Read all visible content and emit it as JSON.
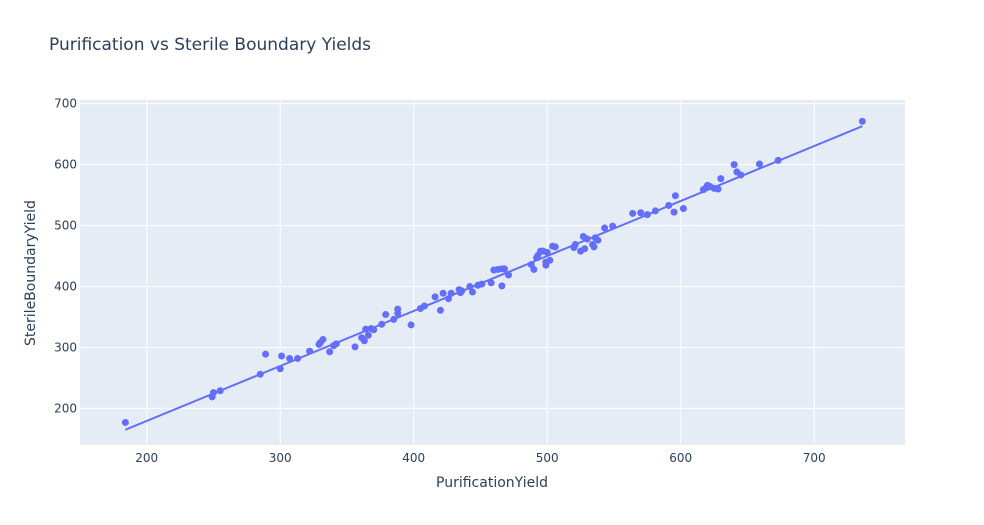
{
  "chart_data": {
    "type": "scatter",
    "title": "Purification vs Sterile Boundary Yields",
    "xlabel": "PurificationYield",
    "ylabel": "SterileBoundaryYield",
    "xlim": [
      150,
      768
    ],
    "ylim": [
      140,
      706
    ],
    "xticks": [
      200,
      300,
      400,
      500,
      600,
      700
    ],
    "yticks": [
      200,
      300,
      400,
      500,
      600,
      700
    ],
    "grid": true,
    "legend": "none",
    "colors": {
      "plot_bg": "#e5ecf6",
      "marker": "#636efa",
      "line": "#636efa",
      "grid": "#ffffff",
      "text": "#2a3f5f"
    },
    "trendline": {
      "x": [
        184,
        736
      ],
      "y": [
        165,
        663
      ]
    },
    "points": [
      {
        "x": 184,
        "y": 177
      },
      {
        "x": 249,
        "y": 219
      },
      {
        "x": 250,
        "y": 226
      },
      {
        "x": 255,
        "y": 229
      },
      {
        "x": 285,
        "y": 256
      },
      {
        "x": 289,
        "y": 289
      },
      {
        "x": 300,
        "y": 265
      },
      {
        "x": 301,
        "y": 286
      },
      {
        "x": 307,
        "y": 282
      },
      {
        "x": 313,
        "y": 282
      },
      {
        "x": 322,
        "y": 294
      },
      {
        "x": 329,
        "y": 305
      },
      {
        "x": 330,
        "y": 308
      },
      {
        "x": 332,
        "y": 313
      },
      {
        "x": 337,
        "y": 293
      },
      {
        "x": 340,
        "y": 303
      },
      {
        "x": 342,
        "y": 306
      },
      {
        "x": 356,
        "y": 301
      },
      {
        "x": 361,
        "y": 316
      },
      {
        "x": 363,
        "y": 311
      },
      {
        "x": 364,
        "y": 330
      },
      {
        "x": 366,
        "y": 320
      },
      {
        "x": 368,
        "y": 331
      },
      {
        "x": 370,
        "y": 329
      },
      {
        "x": 376,
        "y": 338
      },
      {
        "x": 379,
        "y": 354
      },
      {
        "x": 385,
        "y": 346
      },
      {
        "x": 388,
        "y": 363
      },
      {
        "x": 388,
        "y": 356
      },
      {
        "x": 398,
        "y": 337
      },
      {
        "x": 405,
        "y": 364
      },
      {
        "x": 408,
        "y": 368
      },
      {
        "x": 416,
        "y": 383
      },
      {
        "x": 420,
        "y": 361
      },
      {
        "x": 422,
        "y": 389
      },
      {
        "x": 426,
        "y": 380
      },
      {
        "x": 428,
        "y": 389
      },
      {
        "x": 434,
        "y": 395
      },
      {
        "x": 435,
        "y": 390
      },
      {
        "x": 436,
        "y": 393
      },
      {
        "x": 442,
        "y": 400
      },
      {
        "x": 444,
        "y": 391
      },
      {
        "x": 448,
        "y": 402
      },
      {
        "x": 451,
        "y": 404
      },
      {
        "x": 458,
        "y": 406
      },
      {
        "x": 460,
        "y": 427
      },
      {
        "x": 463,
        "y": 428
      },
      {
        "x": 466,
        "y": 429
      },
      {
        "x": 466,
        "y": 401
      },
      {
        "x": 468,
        "y": 429
      },
      {
        "x": 471,
        "y": 419
      },
      {
        "x": 488,
        "y": 436
      },
      {
        "x": 490,
        "y": 428
      },
      {
        "x": 492,
        "y": 447
      },
      {
        "x": 493,
        "y": 451
      },
      {
        "x": 495,
        "y": 458
      },
      {
        "x": 497,
        "y": 458
      },
      {
        "x": 499,
        "y": 435
      },
      {
        "x": 499,
        "y": 440
      },
      {
        "x": 500,
        "y": 456
      },
      {
        "x": 502,
        "y": 443
      },
      {
        "x": 504,
        "y": 466
      },
      {
        "x": 506,
        "y": 465
      },
      {
        "x": 520,
        "y": 464
      },
      {
        "x": 521,
        "y": 469
      },
      {
        "x": 525,
        "y": 458
      },
      {
        "x": 527,
        "y": 482
      },
      {
        "x": 528,
        "y": 462
      },
      {
        "x": 530,
        "y": 478
      },
      {
        "x": 534,
        "y": 469
      },
      {
        "x": 535,
        "y": 465
      },
      {
        "x": 536,
        "y": 480
      },
      {
        "x": 538,
        "y": 476
      },
      {
        "x": 543,
        "y": 496
      },
      {
        "x": 549,
        "y": 499
      },
      {
        "x": 564,
        "y": 520
      },
      {
        "x": 570,
        "y": 521
      },
      {
        "x": 575,
        "y": 518
      },
      {
        "x": 581,
        "y": 524
      },
      {
        "x": 591,
        "y": 533
      },
      {
        "x": 595,
        "y": 522
      },
      {
        "x": 596,
        "y": 549
      },
      {
        "x": 602,
        "y": 528
      },
      {
        "x": 617,
        "y": 559
      },
      {
        "x": 619,
        "y": 562
      },
      {
        "x": 620,
        "y": 566
      },
      {
        "x": 622,
        "y": 564
      },
      {
        "x": 625,
        "y": 561
      },
      {
        "x": 628,
        "y": 560
      },
      {
        "x": 630,
        "y": 577
      },
      {
        "x": 640,
        "y": 600
      },
      {
        "x": 642,
        "y": 588
      },
      {
        "x": 645,
        "y": 583
      },
      {
        "x": 659,
        "y": 601
      },
      {
        "x": 673,
        "y": 607
      },
      {
        "x": 736,
        "y": 671
      }
    ]
  }
}
